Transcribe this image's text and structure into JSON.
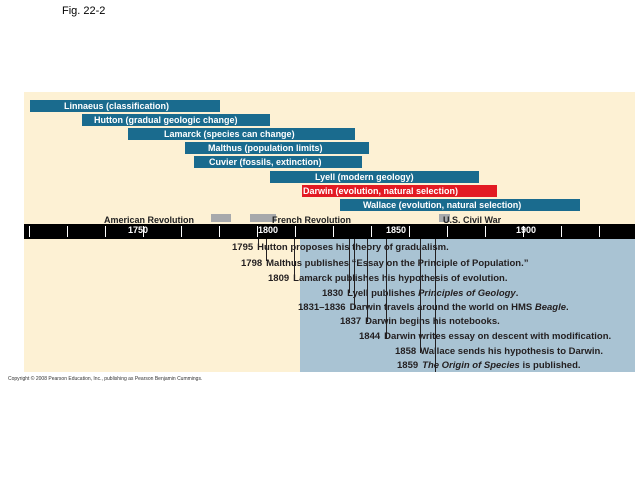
{
  "figure_label": "Fig. 22-2",
  "scientists": [
    {
      "label": "Linnaeus (classification)",
      "color": "#1a6b8e"
    },
    {
      "label": "Hutton (gradual geologic change)",
      "color": "#1a6b8e"
    },
    {
      "label": "Lamarck (species can change)",
      "color": "#1a6b8e"
    },
    {
      "label": "Malthus (population limits)",
      "color": "#1a6b8e"
    },
    {
      "label": "Cuvier (fossils, extinction)",
      "color": "#1a6b8e"
    },
    {
      "label": "Lyell (modern geology)",
      "color": "#1a6b8e"
    },
    {
      "label": "Darwin (evolution, natural selection)",
      "color": "#e31b23"
    },
    {
      "label": "Wallace (evolution, natural selection)",
      "color": "#1a6b8e"
    }
  ],
  "historical_events": [
    {
      "label": "American Revolution"
    },
    {
      "label": "French Revolution"
    },
    {
      "label": "U.S. Civil War"
    }
  ],
  "timeline": {
    "year_labels": [
      "1750",
      "1800",
      "1850",
      "1900"
    ]
  },
  "events": [
    {
      "year": "1795",
      "text": "Hutton proposes his theory of gradualism."
    },
    {
      "year": "1798",
      "text": "Malthus publishes “Essay on the Principle of Population.”"
    },
    {
      "year": "1809",
      "text": "Lamarck publishes his hypothesis of evolution."
    },
    {
      "year": "1830",
      "text_before": "Lyell publishes ",
      "italic": "Principles of Geology",
      "text_after": "."
    },
    {
      "year": "1831–1836",
      "text_before": "Darwin travels around the world on HMS ",
      "italic": "Beagle",
      "text_after": "."
    },
    {
      "year": "1837",
      "text": "Darwin begins his notebooks."
    },
    {
      "year": "1844",
      "text": "Darwin writes essay on descent with modification."
    },
    {
      "year": "1858",
      "text": "Wallace sends his hypothesis to Darwin."
    },
    {
      "year": "1859",
      "text_before": "",
      "italic": "The Origin of Species",
      "text_after": " is published."
    }
  ],
  "copyright": "Copyright © 2008 Pearson Education, Inc., publishing as Pearson Benjamin Cummings."
}
